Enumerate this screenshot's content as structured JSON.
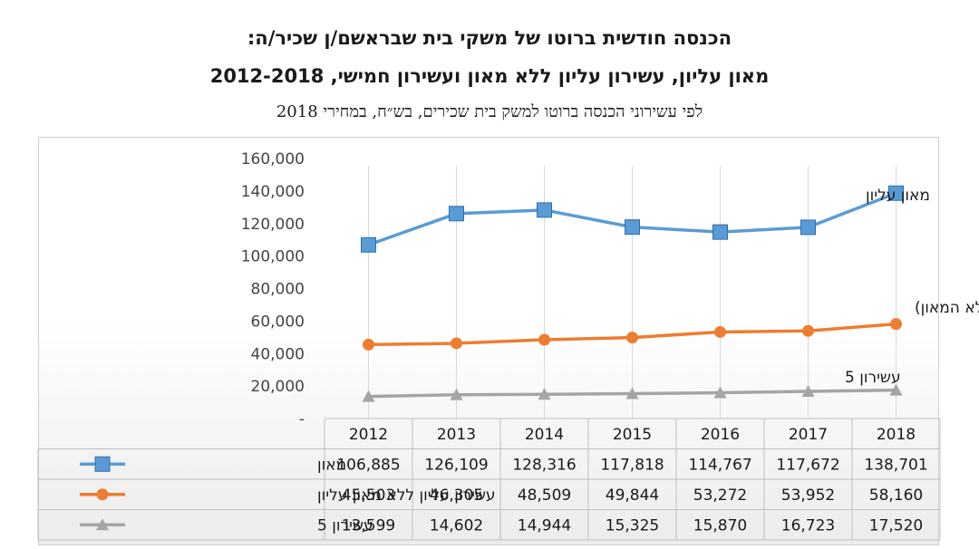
{
  "titles": {
    "line1": "הכנסה חודשית ברוטו של משקי בית שבראשם/ן שכיר/ה:",
    "line2": "מאון עליון, עשירון עליון ללא מאון ועשירון חמישי, 2012-2018",
    "subtitle": "לפי עשירוני הכנסה ברוטו למשק בית שכירים, בש״ח, במחירי 2018"
  },
  "chart_data": {
    "type": "line",
    "x": [
      "2012",
      "2013",
      "2014",
      "2015",
      "2016",
      "2017",
      "2018"
    ],
    "ylim": [
      0,
      160000
    ],
    "yticks": [
      "-",
      "20,000",
      "40,000",
      "60,000",
      "80,000",
      "100,000",
      "120,000",
      "140,000",
      "160,000"
    ],
    "grid": "vertical",
    "series": [
      {
        "name": "מאון",
        "annotation": "מאון עליון",
        "color": "#5b9bd5",
        "marker": "square",
        "values": [
          106885,
          126109,
          128316,
          117818,
          114767,
          117672,
          138701
        ],
        "labels": [
          "106,885",
          "126,109",
          "128,316",
          "117,818",
          "114,767",
          "117,672",
          "138,701"
        ]
      },
      {
        "name": "עשירון עליון ללא מאון עליון",
        "annotation": "עשירון עליון (ללא המאון)",
        "color": "#ed7d31",
        "marker": "circle",
        "values": [
          45503,
          46305,
          48509,
          49844,
          53272,
          53952,
          58160
        ],
        "labels": [
          "45,503",
          "46,305",
          "48,509",
          "49,844",
          "53,272",
          "53,952",
          "58,160"
        ]
      },
      {
        "name": "עשירון 5",
        "annotation": "עשירון 5",
        "color": "#a5a5a5",
        "marker": "triangle",
        "values": [
          13599,
          14602,
          14944,
          15325,
          15870,
          16723,
          17520
        ],
        "labels": [
          "13,599",
          "14,602",
          "14,944",
          "15,325",
          "15,870",
          "16,723",
          "17,520"
        ]
      }
    ]
  }
}
